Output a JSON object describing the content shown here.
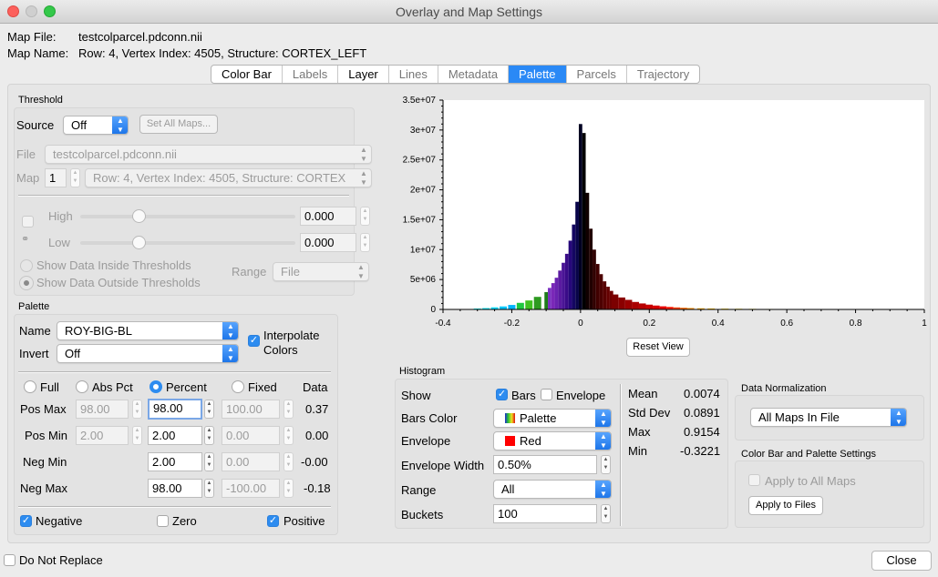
{
  "window": {
    "title": "Overlay and Map Settings",
    "controls": {
      "close_color": "#fc605c",
      "min_color": "#cfcfcf",
      "zoom_color": "#34c84a"
    }
  },
  "map_file": {
    "label": "Map File:",
    "value": "testcolparcel.pdconn.nii"
  },
  "map_name": {
    "label": "Map Name:",
    "value": "Row: 4, Vertex Index: 4505, Structure: CORTEX_LEFT"
  },
  "tabs": [
    {
      "label": "Color Bar",
      "active": false,
      "dim": false
    },
    {
      "label": "Labels",
      "active": false,
      "dim": true
    },
    {
      "label": "Layer",
      "active": false,
      "dim": false
    },
    {
      "label": "Lines",
      "active": false,
      "dim": true
    },
    {
      "label": "Metadata",
      "active": false,
      "dim": true
    },
    {
      "label": "Palette",
      "active": true,
      "dim": false
    },
    {
      "label": "Parcels",
      "active": false,
      "dim": true
    },
    {
      "label": "Trajectory",
      "active": false,
      "dim": true
    }
  ],
  "threshold": {
    "title": "Threshold",
    "source_label": "Source",
    "source_value": "Off",
    "set_all_maps": "Set All Maps...",
    "file_label": "File",
    "file_value": "testcolparcel.pdconn.nii",
    "map_label": "Map",
    "map_index": "1",
    "map_value": "Row: 4, Vertex Index: 4505, Structure: CORTEX",
    "high_label": "High",
    "high_value": "0.000",
    "low_label": "Low",
    "low_value": "0.000",
    "show_inside": "Show Data Inside Thresholds",
    "show_outside": "Show Data Outside Thresholds",
    "range_label": "Range",
    "range_value": "File"
  },
  "palette": {
    "title": "Palette",
    "name_label": "Name",
    "name_value": "ROY-BIG-BL",
    "invert_label": "Invert",
    "invert_value": "Off",
    "interpolate_label_1": "Interpolate",
    "interpolate_label_2": "Colors",
    "modes": {
      "full": "Full",
      "abs_pct": "Abs Pct",
      "percent": "Percent",
      "fixed": "Fixed",
      "data": "Data"
    },
    "pos_max": {
      "label": "Pos Max",
      "abs": "98.00",
      "pct": "98.00",
      "fixed": "100.00",
      "data": "0.37"
    },
    "pos_min": {
      "label": "Pos Min",
      "abs": "2.00",
      "pct": "2.00",
      "fixed": "0.00",
      "data": "0.00"
    },
    "neg_min": {
      "label": "Neg Min",
      "pct": "2.00",
      "fixed": "0.00",
      "data": "-0.00"
    },
    "neg_max": {
      "label": "Neg Max",
      "pct": "98.00",
      "fixed": "-100.00",
      "data": "-0.18"
    },
    "negative": "Negative",
    "zero": "Zero",
    "positive": "Positive"
  },
  "histogram": {
    "title": "Histogram",
    "show_label": "Show",
    "bars_label": "Bars",
    "envelope_label": "Envelope",
    "bars_color_label": "Bars Color",
    "bars_color_value": "Palette",
    "envelope_row_label": "Envelope",
    "envelope_value": "Red",
    "envelope_color": "#ff0000",
    "envelope_width_label": "Envelope Width",
    "envelope_width_value": "0.50%",
    "range_label": "Range",
    "range_value": "All",
    "buckets_label": "Buckets",
    "buckets_value": "100",
    "stats": [
      {
        "label": "Mean",
        "value": "0.0074"
      },
      {
        "label": "Std Dev",
        "value": "0.0891"
      },
      {
        "label": "Max",
        "value": "0.9154"
      },
      {
        "label": "Min",
        "value": "-0.3221"
      }
    ]
  },
  "normalization": {
    "title": "Data Normalization",
    "value": "All Maps In File"
  },
  "cbp_settings": {
    "title": "Color Bar and Palette Settings",
    "apply_all_maps": "Apply to All Maps",
    "apply_files": "Apply to Files"
  },
  "reset_view": "Reset View",
  "do_not_replace": "Do Not Replace",
  "close": "Close",
  "chart_data": {
    "type": "bar",
    "xlim": [
      -0.4,
      1
    ],
    "ylim": [
      0,
      35000000
    ],
    "x_ticks": [
      -0.4,
      -0.2,
      0,
      0.2,
      0.4,
      0.6,
      0.8,
      1
    ],
    "x_tick_labels": [
      "-0.4",
      "-0.2",
      "0",
      "0.2",
      "0.4",
      "0.6",
      "0.8",
      "1"
    ],
    "y_ticks": [
      0,
      5000000,
      10000000,
      15000000,
      20000000,
      25000000,
      30000000,
      35000000
    ],
    "y_tick_labels": [
      "0",
      "5e+06",
      "1e+07",
      "1.5e+07",
      "2e+07",
      "2.5e+07",
      "3e+07",
      "3.5e+07"
    ],
    "bins": [
      {
        "x": -0.3,
        "v": 150000,
        "c": "#00ffff"
      },
      {
        "x": -0.275,
        "v": 220000,
        "c": "#00f0ff"
      },
      {
        "x": -0.25,
        "v": 350000,
        "c": "#00ddff"
      },
      {
        "x": -0.225,
        "v": 500000,
        "c": "#00c8ff"
      },
      {
        "x": -0.2,
        "v": 750000,
        "c": "#00b4ff"
      },
      {
        "x": -0.175,
        "v": 1100000,
        "c": "#20c840"
      },
      {
        "x": -0.15,
        "v": 1500000,
        "c": "#40c020"
      },
      {
        "x": -0.125,
        "v": 2100000,
        "c": "#2e9a20"
      },
      {
        "x": -0.1,
        "v": 2900000,
        "c": "#1e7c1a"
      },
      {
        "x": -0.09,
        "v": 3600000,
        "c": "#7a30c0"
      },
      {
        "x": -0.08,
        "v": 4400000,
        "c": "#7a28b8"
      },
      {
        "x": -0.07,
        "v": 5300000,
        "c": "#6a22b0"
      },
      {
        "x": -0.06,
        "v": 6500000,
        "c": "#5a1aa0"
      },
      {
        "x": -0.05,
        "v": 7800000,
        "c": "#4a1496"
      },
      {
        "x": -0.04,
        "v": 9300000,
        "c": "#3a0c88"
      },
      {
        "x": -0.03,
        "v": 11500000,
        "c": "#26087a"
      },
      {
        "x": -0.02,
        "v": 14200000,
        "c": "#140662"
      },
      {
        "x": -0.01,
        "v": 18000000,
        "c": "#080448"
      },
      {
        "x": 0,
        "v": 31000000,
        "c": "#000022"
      },
      {
        "x": 0.01,
        "v": 29500000,
        "c": "#000000"
      },
      {
        "x": 0.02,
        "v": 19500000,
        "c": "#100000"
      },
      {
        "x": 0.03,
        "v": 13500000,
        "c": "#200000"
      },
      {
        "x": 0.04,
        "v": 10000000,
        "c": "#300000"
      },
      {
        "x": 0.05,
        "v": 7600000,
        "c": "#400000"
      },
      {
        "x": 0.06,
        "v": 5900000,
        "c": "#4c0000"
      },
      {
        "x": 0.07,
        "v": 4700000,
        "c": "#580000"
      },
      {
        "x": 0.08,
        "v": 3800000,
        "c": "#640000"
      },
      {
        "x": 0.09,
        "v": 3100000,
        "c": "#700000"
      },
      {
        "x": 0.1,
        "v": 2500000,
        "c": "#7c0000"
      },
      {
        "x": 0.12,
        "v": 2000000,
        "c": "#8a0000"
      },
      {
        "x": 0.14,
        "v": 1600000,
        "c": "#9a0000"
      },
      {
        "x": 0.16,
        "v": 1250000,
        "c": "#aa0000"
      },
      {
        "x": 0.18,
        "v": 1000000,
        "c": "#b80000"
      },
      {
        "x": 0.2,
        "v": 800000,
        "c": "#c80000"
      },
      {
        "x": 0.22,
        "v": 650000,
        "c": "#d80000"
      },
      {
        "x": 0.24,
        "v": 520000,
        "c": "#e80000"
      },
      {
        "x": 0.26,
        "v": 420000,
        "c": "#ff1a00"
      },
      {
        "x": 0.28,
        "v": 340000,
        "c": "#ff4000"
      },
      {
        "x": 0.3,
        "v": 280000,
        "c": "#ff6600"
      },
      {
        "x": 0.32,
        "v": 230000,
        "c": "#ff8c00"
      },
      {
        "x": 0.35,
        "v": 190000,
        "c": "#ffa800"
      },
      {
        "x": 0.38,
        "v": 160000,
        "c": "#ffc000"
      },
      {
        "x": 0.42,
        "v": 130000,
        "c": "#ffd800"
      },
      {
        "x": 0.46,
        "v": 110000,
        "c": "#ffe800"
      },
      {
        "x": 0.5,
        "v": 95000,
        "c": "#fff000"
      },
      {
        "x": 0.55,
        "v": 80000,
        "c": "#fff500"
      },
      {
        "x": 0.6,
        "v": 70000,
        "c": "#fff800"
      },
      {
        "x": 0.65,
        "v": 60000,
        "c": "#fffa00"
      },
      {
        "x": 0.7,
        "v": 55000,
        "c": "#fffc00"
      },
      {
        "x": 0.75,
        "v": 50000,
        "c": "#fffd40"
      },
      {
        "x": 0.8,
        "v": 45000,
        "c": "#fffe60"
      },
      {
        "x": 0.85,
        "v": 40000,
        "c": "#ffff80"
      },
      {
        "x": 0.9,
        "v": 35000,
        "c": "#ffffa0"
      }
    ]
  }
}
